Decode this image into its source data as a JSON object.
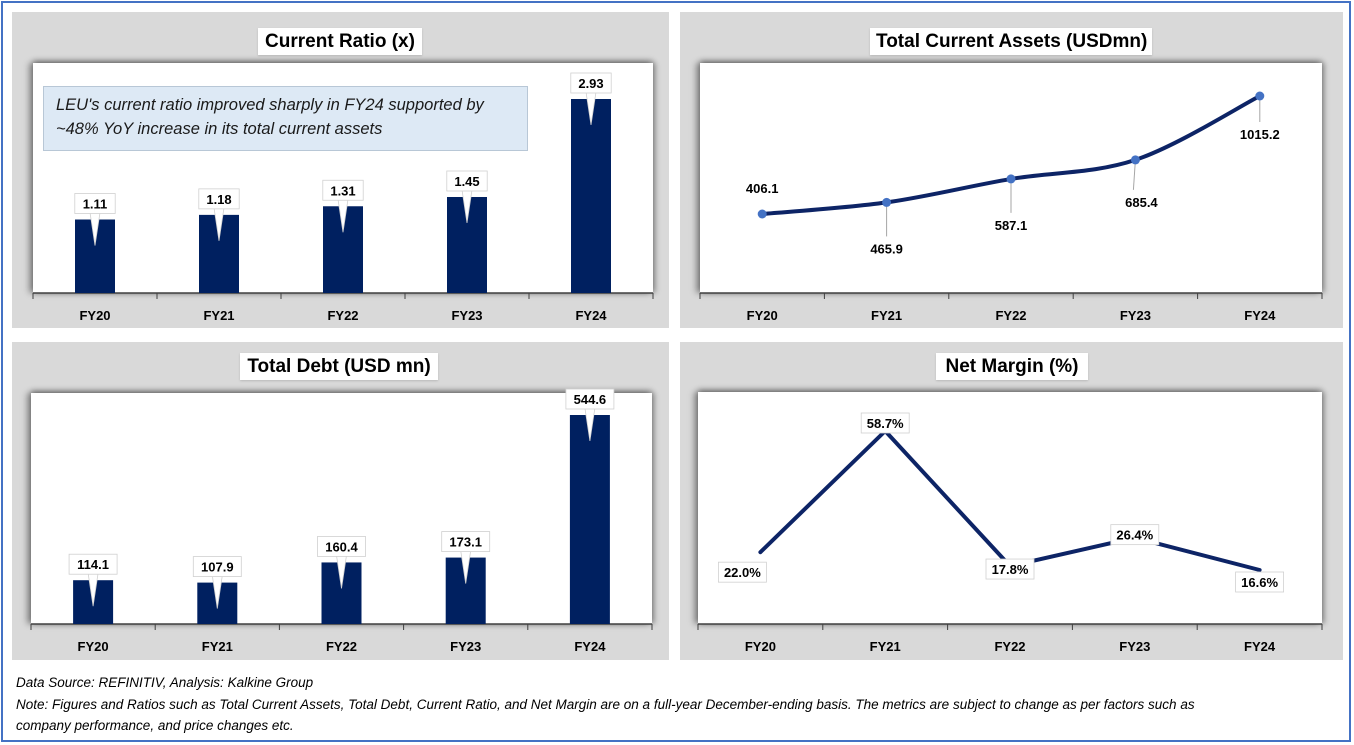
{
  "panels": {
    "current_ratio": {
      "title": "Current Ratio (x)",
      "note": "LEU's current ratio improved sharply in FY24 supported by ~48% YoY increase in its total current assets"
    },
    "total_current_assets": {
      "title": "Total Current Assets (USDmn)"
    },
    "total_debt": {
      "title": "Total Debt (USD mn)"
    },
    "net_margin": {
      "title": "Net Margin (%)"
    }
  },
  "footer": {
    "source": "Data Source: REFINITIV, Analysis: Kalkine Group",
    "note_line1": "Note: Figures and Ratios such as Total Current Assets, Total Debt, Current Ratio, and Net Margin are on a full-year December-ending basis. The metrics are subject to change as per factors such as",
    "note_line2": "company performance, and price changes etc."
  },
  "colors": {
    "bar": "#002060",
    "line": "#0d2466",
    "marker": "#4472c4",
    "frame": "#4472c4",
    "panel_bg": "#d9d9d9"
  },
  "chart_data": [
    {
      "id": "current_ratio",
      "type": "bar",
      "title": "Current Ratio (x)",
      "categories": [
        "FY20",
        "FY21",
        "FY22",
        "FY23",
        "FY24"
      ],
      "values": [
        1.11,
        1.18,
        1.31,
        1.45,
        2.93
      ],
      "labels": [
        "1.11",
        "1.18",
        "1.31",
        "1.45",
        "2.93"
      ],
      "xlabel": "",
      "ylabel": "",
      "ylim": [
        0,
        2.93
      ],
      "grid": false
    },
    {
      "id": "total_current_assets",
      "type": "line",
      "title": "Total Current Assets (USDmn)",
      "categories": [
        "FY20",
        "FY21",
        "FY22",
        "FY23",
        "FY24"
      ],
      "values": [
        406.1,
        465.9,
        587.1,
        685.4,
        1015.2
      ],
      "labels": [
        "406.1",
        "465.9",
        "587.1",
        "685.4",
        "1015.2"
      ],
      "xlabel": "",
      "ylabel": "",
      "smooth": true,
      "markers": true,
      "grid": false
    },
    {
      "id": "total_debt",
      "type": "bar",
      "title": "Total Debt (USD mn)",
      "categories": [
        "FY20",
        "FY21",
        "FY22",
        "FY23",
        "FY24"
      ],
      "values": [
        114.1,
        107.9,
        160.4,
        173.1,
        544.6
      ],
      "labels": [
        "114.1",
        "107.9",
        "160.4",
        "173.1",
        "544.6"
      ],
      "xlabel": "",
      "ylabel": "",
      "ylim": [
        0,
        544.6
      ],
      "grid": false
    },
    {
      "id": "net_margin",
      "type": "line",
      "title": "Net Margin (%)",
      "categories": [
        "FY20",
        "FY21",
        "FY22",
        "FY23",
        "FY24"
      ],
      "values": [
        22.0,
        58.7,
        17.8,
        26.4,
        16.6
      ],
      "labels": [
        "22.0%",
        "58.7%",
        "17.8%",
        "26.4%",
        "16.6%"
      ],
      "xlabel": "",
      "ylabel": "",
      "smooth": false,
      "markers": false,
      "grid": false
    }
  ]
}
